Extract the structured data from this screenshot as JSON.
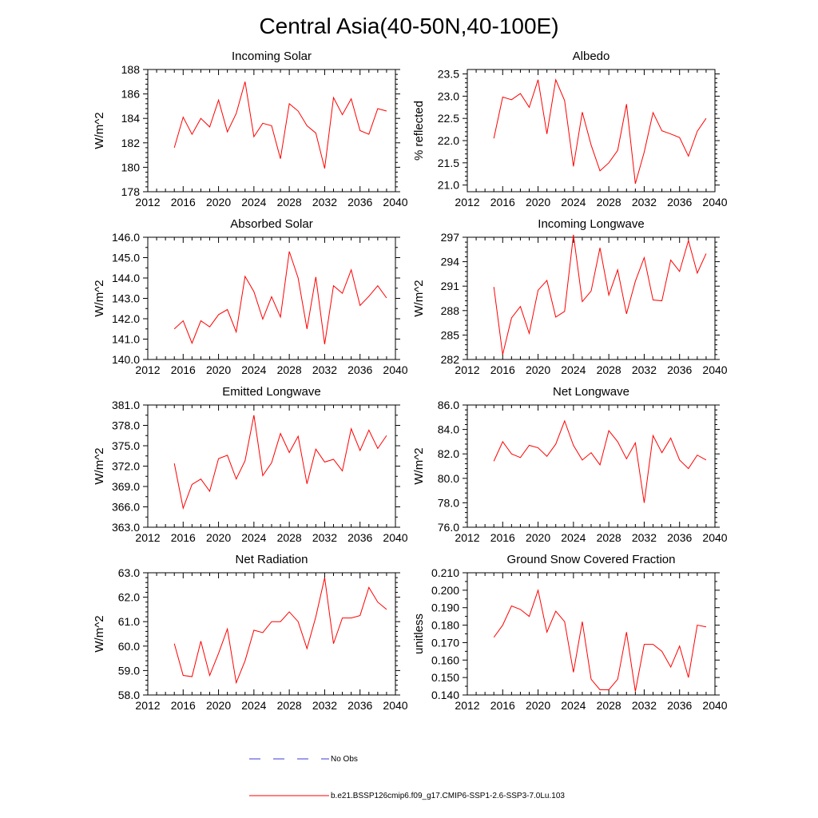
{
  "figure_title": "Central Asia(40-50N,40-100E)",
  "legend": {
    "obs_label": "No Obs",
    "obs_color": "#3b3bd6",
    "model_label": "b.e21.BSSP126cmip6.f09_g17.CMIP6-SSP1-2.6-SSP3-7.0Lu.103",
    "model_color": "#ff0000"
  },
  "chart_data": [
    {
      "type": "line",
      "title": "Incoming Solar",
      "ylabel": "W/m^2",
      "xlim": [
        2012,
        2040
      ],
      "xticks": [
        "2012",
        "2016",
        "2020",
        "2024",
        "2028",
        "2032",
        "2036",
        "2040"
      ],
      "ylim": [
        178,
        188
      ],
      "yticks": [
        "178",
        "180",
        "182",
        "184",
        "186",
        "188"
      ],
      "x": [
        2015,
        2016,
        2017,
        2018,
        2019,
        2020,
        2021,
        2022,
        2023,
        2024,
        2025,
        2026,
        2027,
        2028,
        2029,
        2030,
        2031,
        2032,
        2033,
        2034,
        2035,
        2036,
        2037,
        2038,
        2039
      ],
      "series": [
        {
          "name": "b.e21.BSSP126cmip6.f09_g17.CMIP6-SSP1-2.6-SSP3-7.0Lu.103",
          "values": [
            181.6,
            184.1,
            182.7,
            184.0,
            183.3,
            185.5,
            182.9,
            184.4,
            187.0,
            182.5,
            183.6,
            183.4,
            180.7,
            185.2,
            184.6,
            183.4,
            182.8,
            179.9,
            185.7,
            184.3,
            185.6,
            183.0,
            182.7,
            184.8,
            184.6
          ]
        }
      ]
    },
    {
      "type": "line",
      "title": "Albedo",
      "ylabel": "% reflected",
      "xlim": [
        2012,
        2040
      ],
      "xticks": [
        "2012",
        "2016",
        "2020",
        "2024",
        "2028",
        "2032",
        "2036",
        "2040"
      ],
      "ylim": [
        20.85,
        23.6
      ],
      "yticks": [
        "21.0",
        "21.5",
        "22.0",
        "22.5",
        "23.0",
        "23.5"
      ],
      "x": [
        2015,
        2016,
        2017,
        2018,
        2019,
        2020,
        2021,
        2022,
        2023,
        2024,
        2025,
        2026,
        2027,
        2028,
        2029,
        2030,
        2031,
        2032,
        2033,
        2034,
        2035,
        2036,
        2037,
        2038,
        2039
      ],
      "series": [
        {
          "name": "b.e21.BSSP126cmip6.f09_g17.CMIP6-SSP1-2.6-SSP3-7.0Lu.103",
          "values": [
            22.05,
            22.98,
            22.92,
            23.06,
            22.75,
            23.37,
            22.15,
            23.37,
            22.9,
            21.42,
            22.64,
            21.9,
            21.32,
            21.5,
            21.78,
            22.82,
            21.03,
            21.74,
            22.63,
            22.22,
            22.15,
            22.07,
            21.65,
            22.21,
            22.5
          ]
        }
      ]
    },
    {
      "type": "line",
      "title": "Absorbed Solar",
      "ylabel": "W/m^2",
      "xlim": [
        2012,
        2040
      ],
      "xticks": [
        "2012",
        "2016",
        "2020",
        "2024",
        "2028",
        "2032",
        "2036",
        "2040"
      ],
      "ylim": [
        140,
        146
      ],
      "yticks": [
        "140.0",
        "141.0",
        "142.0",
        "143.0",
        "144.0",
        "145.0",
        "146.0"
      ],
      "x": [
        2015,
        2016,
        2017,
        2018,
        2019,
        2020,
        2021,
        2022,
        2023,
        2024,
        2025,
        2026,
        2027,
        2028,
        2029,
        2030,
        2031,
        2032,
        2033,
        2034,
        2035,
        2036,
        2037,
        2038,
        2039
      ],
      "series": [
        {
          "name": "b.e21.BSSP126cmip6.f09_g17.CMIP6-SSP1-2.6-SSP3-7.0Lu.103",
          "values": [
            141.5,
            141.9,
            140.8,
            141.9,
            141.6,
            142.2,
            142.45,
            141.35,
            144.08,
            143.33,
            141.98,
            143.08,
            142.08,
            145.3,
            144.0,
            141.5,
            144.05,
            140.75,
            143.62,
            143.25,
            144.4,
            142.65,
            143.1,
            143.62,
            143.02
          ]
        }
      ]
    },
    {
      "type": "line",
      "title": "Incoming Longwave",
      "ylabel": "W/m^2",
      "xlim": [
        2012,
        2040
      ],
      "xticks": [
        "2012",
        "2016",
        "2020",
        "2024",
        "2028",
        "2032",
        "2036",
        "2040"
      ],
      "ylim": [
        282,
        297
      ],
      "yticks": [
        "282",
        "285",
        "288",
        "291",
        "294",
        "297"
      ],
      "x": [
        2015,
        2016,
        2017,
        2018,
        2019,
        2020,
        2021,
        2022,
        2023,
        2024,
        2025,
        2026,
        2027,
        2028,
        2029,
        2030,
        2031,
        2032,
        2033,
        2034,
        2035,
        2036,
        2037,
        2038,
        2039
      ],
      "series": [
        {
          "name": "b.e21.BSSP126cmip6.f09_g17.CMIP6-SSP1-2.6-SSP3-7.0Lu.103",
          "values": [
            290.9,
            282.6,
            287.1,
            288.5,
            285.2,
            290.5,
            291.7,
            287.2,
            287.9,
            297.3,
            289.1,
            290.4,
            295.7,
            289.9,
            293.0,
            287.6,
            291.6,
            294.5,
            289.3,
            289.2,
            294.2,
            292.8,
            296.6,
            292.6,
            295.0
          ]
        }
      ]
    },
    {
      "type": "line",
      "title": "Emitted Longwave",
      "ylabel": "W/m^2",
      "xlim": [
        2012,
        2040
      ],
      "xticks": [
        "2012",
        "2016",
        "2020",
        "2024",
        "2028",
        "2032",
        "2036",
        "2040"
      ],
      "ylim": [
        363,
        381
      ],
      "yticks": [
        "363.0",
        "366.0",
        "369.0",
        "372.0",
        "375.0",
        "378.0",
        "381.0"
      ],
      "x": [
        2015,
        2016,
        2017,
        2018,
        2019,
        2020,
        2021,
        2022,
        2023,
        2024,
        2025,
        2026,
        2027,
        2028,
        2029,
        2030,
        2031,
        2032,
        2033,
        2034,
        2035,
        2036,
        2037,
        2038,
        2039
      ],
      "series": [
        {
          "name": "b.e21.BSSP126cmip6.f09_g17.CMIP6-SSP1-2.6-SSP3-7.0Lu.103",
          "values": [
            372.4,
            365.8,
            369.3,
            370.1,
            368.3,
            373.1,
            373.6,
            370.1,
            372.8,
            379.5,
            370.6,
            372.5,
            376.8,
            374.0,
            376.4,
            369.4,
            374.5,
            372.6,
            373.0,
            371.3,
            377.5,
            374.3,
            377.3,
            374.6,
            376.5
          ]
        }
      ]
    },
    {
      "type": "line",
      "title": "Net Longwave",
      "ylabel": "W/m^2",
      "xlim": [
        2012,
        2040
      ],
      "xticks": [
        "2012",
        "2016",
        "2020",
        "2024",
        "2028",
        "2032",
        "2036",
        "2040"
      ],
      "ylim": [
        76,
        86
      ],
      "yticks": [
        "76.0",
        "78.0",
        "80.0",
        "82.0",
        "84.0",
        "86.0"
      ],
      "x": [
        2015,
        2016,
        2017,
        2018,
        2019,
        2020,
        2021,
        2022,
        2023,
        2024,
        2025,
        2026,
        2027,
        2028,
        2029,
        2030,
        2031,
        2032,
        2033,
        2034,
        2035,
        2036,
        2037,
        2038,
        2039
      ],
      "series": [
        {
          "name": "b.e21.BSSP126cmip6.f09_g17.CMIP6-SSP1-2.6-SSP3-7.0Lu.103",
          "values": [
            81.4,
            83.0,
            82.0,
            81.7,
            82.7,
            82.5,
            81.8,
            82.8,
            84.7,
            82.7,
            81.5,
            82.1,
            81.1,
            83.9,
            83.0,
            81.6,
            82.9,
            78.0,
            83.5,
            82.1,
            83.3,
            81.5,
            80.8,
            81.9,
            81.5
          ]
        }
      ]
    },
    {
      "type": "line",
      "title": "Net Radiation",
      "ylabel": "W/m^2",
      "xlim": [
        2012,
        2040
      ],
      "xticks": [
        "2012",
        "2016",
        "2020",
        "2024",
        "2028",
        "2032",
        "2036",
        "2040"
      ],
      "ylim": [
        58,
        63
      ],
      "yticks": [
        "58.0",
        "59.0",
        "60.0",
        "61.0",
        "62.0",
        "63.0"
      ],
      "x": [
        2015,
        2016,
        2017,
        2018,
        2019,
        2020,
        2021,
        2022,
        2023,
        2024,
        2025,
        2026,
        2027,
        2028,
        2029,
        2030,
        2031,
        2032,
        2033,
        2034,
        2035,
        2036,
        2037,
        2038,
        2039
      ],
      "series": [
        {
          "name": "b.e21.BSSP126cmip6.f09_g17.CMIP6-SSP1-2.6-SSP3-7.0Lu.103",
          "values": [
            60.1,
            58.8,
            58.75,
            60.2,
            58.8,
            59.7,
            60.7,
            58.5,
            59.4,
            60.65,
            60.55,
            61.0,
            61.0,
            61.4,
            61.0,
            59.9,
            61.2,
            62.8,
            60.1,
            61.15,
            61.15,
            61.25,
            62.4,
            61.8,
            61.5
          ]
        }
      ]
    },
    {
      "type": "line",
      "title": "Ground Snow Covered Fraction",
      "ylabel": "unitless",
      "xlim": [
        2012,
        2040
      ],
      "xticks": [
        "2012",
        "2016",
        "2020",
        "2024",
        "2028",
        "2032",
        "2036",
        "2040"
      ],
      "ylim": [
        0.14,
        0.21
      ],
      "yticks": [
        "0.140",
        "0.150",
        "0.160",
        "0.170",
        "0.180",
        "0.190",
        "0.200",
        "0.210"
      ],
      "x": [
        2015,
        2016,
        2017,
        2018,
        2019,
        2020,
        2021,
        2022,
        2023,
        2024,
        2025,
        2026,
        2027,
        2028,
        2029,
        2030,
        2031,
        2032,
        2033,
        2034,
        2035,
        2036,
        2037,
        2038,
        2039
      ],
      "series": [
        {
          "name": "b.e21.BSSP126cmip6.f09_g17.CMIP6-SSP1-2.6-SSP3-7.0Lu.103",
          "values": [
            0.173,
            0.18,
            0.191,
            0.189,
            0.185,
            0.2,
            0.176,
            0.188,
            0.182,
            0.153,
            0.182,
            0.149,
            0.143,
            0.143,
            0.149,
            0.176,
            0.142,
            0.169,
            0.169,
            0.165,
            0.156,
            0.168,
            0.15,
            0.18,
            0.179
          ]
        }
      ]
    }
  ]
}
